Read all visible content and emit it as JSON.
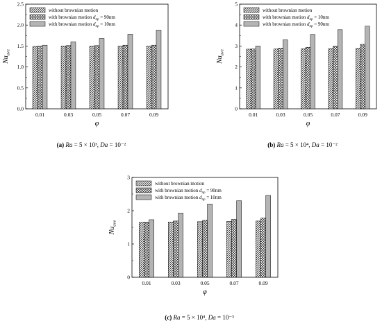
{
  "chart_data": [
    {
      "type": "bar",
      "panel_label": "(a)",
      "caption": "Ra = 5 × 10³, Da = 10⁻²",
      "xlabel": "φ",
      "ylabel": "Nu_ave",
      "categories": [
        "0.01",
        "0.03",
        "0.05",
        "0.07",
        "0.09"
      ],
      "ylim": [
        0.0,
        2.5
      ],
      "yticks": [
        "0.0",
        "0.5",
        "1.0",
        "1.5",
        "2.0",
        "2.5"
      ],
      "series": [
        {
          "name": "without brownian motion",
          "pattern": "diagonal",
          "values": [
            1.49,
            1.5,
            1.5,
            1.5,
            1.5
          ]
        },
        {
          "name": "with brownian motion dnp = 90nm",
          "pattern": "crosshatch",
          "values": [
            1.5,
            1.51,
            1.51,
            1.52,
            1.52
          ]
        },
        {
          "name": "with brownian motion dnp = 10nm",
          "pattern": "gray",
          "values": [
            1.52,
            1.6,
            1.68,
            1.78,
            1.88
          ]
        }
      ],
      "legend": "top-left",
      "grid": false
    },
    {
      "type": "bar",
      "panel_label": "(b)",
      "caption": "Ra = 5 × 10⁴, Da = 10⁻²",
      "xlabel": "φ",
      "ylabel": "Nu_ave",
      "categories": [
        "0.01",
        "0.03",
        "0.05",
        "0.07",
        "0.09"
      ],
      "ylim": [
        0,
        5
      ],
      "yticks": [
        "0",
        "1",
        "2",
        "3",
        "4",
        "5"
      ],
      "series": [
        {
          "name": "without brownian motion",
          "pattern": "diagonal",
          "values": [
            2.85,
            2.86,
            2.87,
            2.88,
            2.89
          ]
        },
        {
          "name": "with brownian motion dnp = 10nm",
          "pattern": "crosshatch",
          "values": [
            2.86,
            2.9,
            2.94,
            3.0,
            3.08
          ]
        },
        {
          "name": "with brownian motion dnp = 90nm",
          "pattern": "gray",
          "values": [
            3.0,
            3.3,
            3.55,
            3.78,
            3.95
          ]
        }
      ],
      "legend": "top-left",
      "grid": false
    },
    {
      "type": "bar",
      "panel_label": "(c)",
      "caption": "Ra = 5 × 10⁴, Da = 10⁻³",
      "xlabel": "φ",
      "ylabel": "Nu_ave",
      "categories": [
        "0.01",
        "0.03",
        "0.05",
        "0.07",
        "0.09"
      ],
      "ylim": [
        0,
        3
      ],
      "yticks": [
        "0",
        "1",
        "2",
        "3"
      ],
      "series": [
        {
          "name": "without brownian motion",
          "pattern": "diagonal",
          "values": [
            1.65,
            1.66,
            1.67,
            1.68,
            1.69
          ]
        },
        {
          "name": "with brownian motion dnp = 90nm",
          "pattern": "crosshatch",
          "values": [
            1.66,
            1.69,
            1.71,
            1.74,
            1.78
          ]
        },
        {
          "name": "with brownian motion dnp = 10nm",
          "pattern": "gray",
          "values": [
            1.73,
            1.93,
            2.2,
            2.3,
            2.46
          ]
        }
      ],
      "legend": "top-left",
      "grid": false
    }
  ]
}
